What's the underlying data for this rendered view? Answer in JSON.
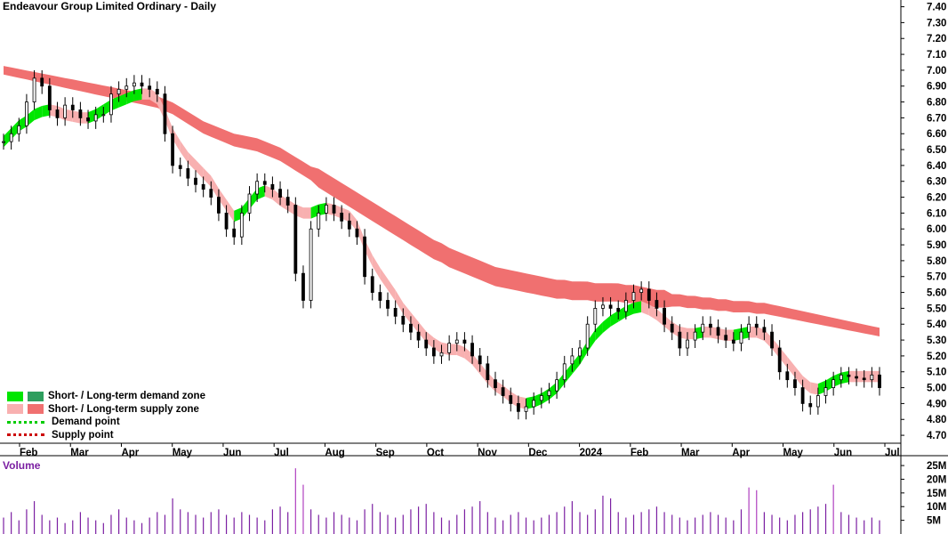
{
  "chart_data": {
    "type": "candlestick",
    "title": "Endeavour Group Limited Ordinary - Daily",
    "y_axis": {
      "ticks": [
        "7.40",
        "7.30",
        "7.20",
        "7.10",
        "7.00",
        "6.90",
        "6.80",
        "6.70",
        "6.60",
        "6.50",
        "6.40",
        "6.30",
        "6.20",
        "6.10",
        "6.00",
        "5.90",
        "5.80",
        "5.70",
        "5.60",
        "5.50",
        "5.40",
        "5.30",
        "5.20",
        "5.10",
        "5.00",
        "4.90",
        "4.80",
        "4.70"
      ],
      "range": [
        4.65,
        7.42
      ]
    },
    "x_axis": {
      "ticks": [
        "Feb",
        "Mar",
        "Apr",
        "May",
        "Jun",
        "Jul",
        "Aug",
        "Sep",
        "Oct",
        "Nov",
        "Dec",
        "2024",
        "Feb",
        "Mar",
        "Apr",
        "May",
        "Jun",
        "Jul"
      ]
    },
    "series": {
      "close": [
        6.55,
        6.6,
        6.65,
        6.8,
        6.95,
        6.9,
        6.75,
        6.7,
        6.78,
        6.75,
        6.7,
        6.68,
        6.72,
        6.72,
        6.85,
        6.88,
        6.9,
        6.92,
        6.9,
        6.88,
        6.85,
        6.6,
        6.4,
        6.38,
        6.32,
        6.28,
        6.25,
        6.2,
        6.1,
        6.0,
        5.95,
        6.1,
        6.22,
        6.3,
        6.28,
        6.25,
        6.2,
        6.15,
        5.72,
        5.55,
        6.0,
        6.1,
        6.15,
        6.1,
        6.05,
        6.0,
        5.95,
        5.7,
        5.6,
        5.55,
        5.5,
        5.45,
        5.4,
        5.35,
        5.3,
        5.25,
        5.2,
        5.22,
        5.28,
        5.3,
        5.28,
        5.2,
        5.15,
        5.05,
        5.0,
        4.95,
        4.9,
        4.85,
        4.88,
        4.92,
        4.95,
        4.98,
        5.05,
        5.15,
        5.2,
        5.25,
        5.4,
        5.5,
        5.52,
        5.5,
        5.48,
        5.55,
        5.6,
        5.62,
        5.55,
        5.5,
        5.4,
        5.35,
        5.25,
        5.3,
        5.35,
        5.4,
        5.38,
        5.33,
        5.3,
        5.28,
        5.35,
        5.4,
        5.38,
        5.35,
        5.25,
        5.1,
        5.05,
        5.0,
        4.9,
        4.88,
        4.95,
        5.0,
        5.05,
        5.08,
        5.07,
        5.06,
        5.05,
        5.08,
        5.0
      ],
      "short_band_mid": [
        6.55,
        6.6,
        6.65,
        6.68,
        6.72,
        6.74,
        6.75,
        6.74,
        6.72,
        6.71,
        6.7,
        6.7,
        6.72,
        6.75,
        6.78,
        6.8,
        6.82,
        6.84,
        6.85,
        6.85,
        6.82,
        6.72,
        6.6,
        6.52,
        6.45,
        6.4,
        6.35,
        6.3,
        6.22,
        6.15,
        6.08,
        6.1,
        6.16,
        6.22,
        6.24,
        6.22,
        6.18,
        6.15,
        6.12,
        6.1,
        6.1,
        6.12,
        6.13,
        6.12,
        6.1,
        6.08,
        6.02,
        5.9,
        5.8,
        5.72,
        5.65,
        5.58,
        5.5,
        5.44,
        5.38,
        5.32,
        5.28,
        5.25,
        5.24,
        5.24,
        5.22,
        5.18,
        5.12,
        5.06,
        5.01,
        4.98,
        4.94,
        4.91,
        4.9,
        4.91,
        4.93,
        4.96,
        5.0,
        5.06,
        5.12,
        5.18,
        5.26,
        5.33,
        5.38,
        5.42,
        5.45,
        5.48,
        5.5,
        5.51,
        5.49,
        5.46,
        5.42,
        5.38,
        5.35,
        5.34,
        5.34,
        5.35,
        5.35,
        5.34,
        5.33,
        5.33,
        5.34,
        5.35,
        5.35,
        5.33,
        5.28,
        5.22,
        5.16,
        5.1,
        5.04,
        5.0,
        4.99,
        5.01,
        5.04,
        5.06,
        5.07,
        5.07,
        5.07,
        5.07,
        5.07
      ],
      "long_band_mid": [
        7.0,
        6.99,
        6.98,
        6.97,
        6.96,
        6.95,
        6.94,
        6.93,
        6.92,
        6.91,
        6.9,
        6.89,
        6.88,
        6.87,
        6.86,
        6.85,
        6.84,
        6.83,
        6.82,
        6.81,
        6.8,
        6.78,
        6.76,
        6.73,
        6.7,
        6.67,
        6.64,
        6.62,
        6.6,
        6.58,
        6.56,
        6.55,
        6.54,
        6.53,
        6.51,
        6.49,
        6.47,
        6.44,
        6.41,
        6.38,
        6.35,
        6.32,
        6.29,
        6.26,
        6.23,
        6.2,
        6.17,
        6.14,
        6.11,
        6.08,
        6.05,
        6.02,
        5.99,
        5.96,
        5.93,
        5.9,
        5.87,
        5.85,
        5.82,
        5.8,
        5.78,
        5.76,
        5.74,
        5.72,
        5.7,
        5.69,
        5.68,
        5.67,
        5.66,
        5.65,
        5.64,
        5.63,
        5.62,
        5.62,
        5.61,
        5.61,
        5.61,
        5.6,
        5.6,
        5.6,
        5.6,
        5.59,
        5.59,
        5.58,
        5.57,
        5.56,
        5.56,
        5.55,
        5.55,
        5.54,
        5.54,
        5.53,
        5.53,
        5.52,
        5.52,
        5.51,
        5.51,
        5.51,
        5.5,
        5.5,
        5.49,
        5.48,
        5.47,
        5.46,
        5.45,
        5.44,
        5.43,
        5.42,
        5.41,
        5.4,
        5.39,
        5.38,
        5.37,
        5.36,
        5.35
      ],
      "volume": [
        6,
        8,
        5,
        9,
        12,
        7,
        5,
        6,
        4,
        5,
        8,
        6,
        5,
        4,
        7,
        9,
        6,
        5,
        4,
        6,
        8,
        7,
        13,
        9,
        8,
        7,
        6,
        8,
        9,
        7,
        6,
        8,
        7,
        6,
        5,
        9,
        10,
        8,
        24,
        18,
        9,
        7,
        6,
        8,
        7,
        6,
        5,
        9,
        11,
        8,
        7,
        6,
        7,
        9,
        10,
        11,
        8,
        6,
        5,
        7,
        9,
        10,
        12,
        8,
        6,
        5,
        7,
        8,
        6,
        5,
        6,
        7,
        8,
        10,
        12,
        8,
        7,
        9,
        14,
        13,
        8,
        6,
        7,
        8,
        9,
        10,
        8,
        7,
        6,
        5,
        6,
        7,
        8,
        7,
        6,
        5,
        9,
        17,
        16,
        8,
        7,
        6,
        5,
        7,
        8,
        9,
        10,
        11,
        18,
        8,
        7,
        6,
        5,
        6,
        5
      ]
    },
    "volume_axis": {
      "label": "Volume",
      "ticks": [
        "25M",
        "20M",
        "15M",
        "10M",
        "5M"
      ],
      "range": [
        0,
        26
      ]
    },
    "legend": [
      {
        "label": "Short- / Long-term demand zone",
        "short_color": "#00e600",
        "long_color": "#2e9e5e"
      },
      {
        "label": "Short- / Long-term supply zone",
        "short_color": "#f8b0b0",
        "long_color": "#f07070"
      },
      {
        "label": "Demand point",
        "color": "#00cc00"
      },
      {
        "label": "Supply point",
        "color": "#cc0000"
      }
    ],
    "colors": {
      "candle": "#000000",
      "short_supply": "#f8b0b0",
      "long_supply": "#f07070",
      "short_demand": "#00e600",
      "transition": "#f07030",
      "volume": "#7b1fa2",
      "volume_highlight": "#b040c0"
    }
  }
}
